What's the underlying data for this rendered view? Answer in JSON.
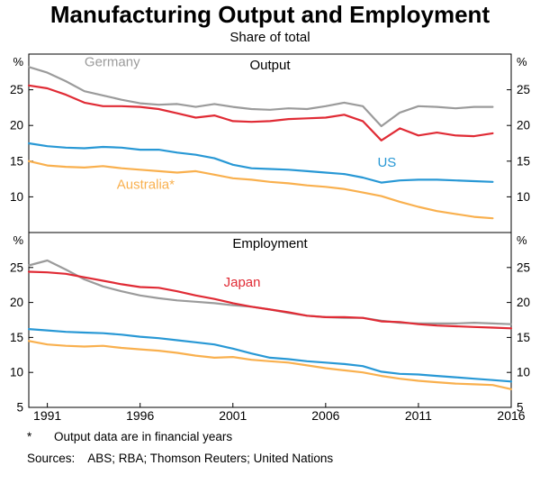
{
  "page": {
    "title": "Manufacturing Output and Employment",
    "subtitle": "Share of total",
    "footnote_marker": "*",
    "footnote_text": "Output data are in financial years",
    "sources_label": "Sources:",
    "sources_text": "ABS; RBA; Thomson Reuters; United Nations"
  },
  "chart_data": {
    "type": "line",
    "title": "Manufacturing Output and Employment",
    "subtitle": "Share of total",
    "legend_position": "none",
    "grid": false,
    "x_axis": {
      "range": [
        1990,
        2016
      ],
      "tick_labels": [
        1991,
        1996,
        2001,
        2006,
        2011,
        2016
      ]
    },
    "panels": [
      {
        "title": "Output",
        "unit": "%",
        "ylim": [
          5,
          30
        ],
        "yticks": [
          10,
          15,
          20,
          25
        ],
        "x": [
          1990,
          1991,
          1992,
          1993,
          1994,
          1995,
          1996,
          1997,
          1998,
          1999,
          2000,
          2001,
          2002,
          2003,
          2004,
          2005,
          2006,
          2007,
          2008,
          2009,
          2010,
          2011,
          2012,
          2013,
          2014,
          2015
        ],
        "series": [
          {
            "name": "Germany",
            "color": "#9b9b9b",
            "values": [
              28.2,
              27.4,
              26.2,
              24.8,
              24.2,
              23.6,
              23.1,
              22.9,
              23.0,
              22.6,
              23.0,
              22.6,
              22.3,
              22.2,
              22.4,
              22.3,
              22.7,
              23.2,
              22.7,
              19.9,
              21.8,
              22.7,
              22.6,
              22.4,
              22.6,
              22.6
            ],
            "label": {
              "text": "Germany",
              "x": 1994.5,
              "y": 28.3
            }
          },
          {
            "name": "Japan",
            "color": "#e02b35",
            "values": [
              25.6,
              25.2,
              24.3,
              23.2,
              22.7,
              22.7,
              22.6,
              22.3,
              21.7,
              21.1,
              21.4,
              20.6,
              20.5,
              20.6,
              20.9,
              21.0,
              21.1,
              21.5,
              20.6,
              17.9,
              19.6,
              18.6,
              19.0,
              18.6,
              18.5,
              18.9
            ]
          },
          {
            "name": "US",
            "color": "#2898d5",
            "values": [
              17.5,
              17.1,
              16.9,
              16.8,
              17.0,
              16.9,
              16.6,
              16.6,
              16.2,
              15.9,
              15.4,
              14.5,
              14.0,
              13.9,
              13.8,
              13.6,
              13.4,
              13.2,
              12.7,
              12.0,
              12.3,
              12.4,
              12.4,
              12.3,
              12.2,
              12.1
            ],
            "label": {
              "text": "US",
              "x": 2009.3,
              "y": 14.2
            }
          },
          {
            "name": "Australia",
            "color": "#f9b04e",
            "values": [
              15.0,
              14.4,
              14.2,
              14.1,
              14.3,
              14.0,
              13.8,
              13.6,
              13.4,
              13.6,
              13.1,
              12.6,
              12.4,
              12.1,
              11.9,
              11.6,
              11.4,
              11.1,
              10.6,
              10.1,
              9.3,
              8.6,
              8.0,
              7.6,
              7.2,
              7.0
            ],
            "label": {
              "text": "Australia*",
              "x": 1996.3,
              "y": 11.1
            }
          }
        ]
      },
      {
        "title": "Employment",
        "unit": "%",
        "ylim": [
          5,
          30
        ],
        "yticks": [
          5,
          10,
          15,
          20,
          25
        ],
        "x": [
          1990,
          1991,
          1992,
          1993,
          1994,
          1995,
          1996,
          1997,
          1998,
          1999,
          2000,
          2001,
          2002,
          2003,
          2004,
          2005,
          2006,
          2007,
          2008,
          2009,
          2010,
          2011,
          2012,
          2013,
          2014,
          2015,
          2016
        ],
        "series": [
          {
            "name": "Germany",
            "color": "#9b9b9b",
            "values": [
              25.3,
              26.0,
              24.7,
              23.3,
              22.3,
              21.6,
              21.0,
              20.6,
              20.3,
              20.1,
              19.9,
              19.6,
              19.4,
              19.0,
              18.5,
              18.1,
              17.9,
              17.8,
              17.8,
              17.4,
              17.1,
              17.0,
              17.0,
              17.0,
              17.1,
              17.0,
              16.9
            ]
          },
          {
            "name": "Japan",
            "color": "#e02b35",
            "values": [
              24.4,
              24.3,
              24.1,
              23.6,
              23.1,
              22.6,
              22.2,
              22.1,
              21.6,
              21.0,
              20.5,
              19.9,
              19.4,
              19.0,
              18.6,
              18.1,
              17.9,
              17.9,
              17.8,
              17.3,
              17.2,
              16.9,
              16.7,
              16.6,
              16.5,
              16.4,
              16.3
            ],
            "label": {
              "text": "Japan",
              "x": 2001.5,
              "y": 22.3
            }
          },
          {
            "name": "US",
            "color": "#2898d5",
            "values": [
              16.2,
              16.0,
              15.8,
              15.7,
              15.6,
              15.4,
              15.1,
              14.9,
              14.6,
              14.3,
              14.0,
              13.4,
              12.7,
              12.1,
              11.9,
              11.6,
              11.4,
              11.2,
              10.9,
              10.1,
              9.8,
              9.7,
              9.5,
              9.3,
              9.1,
              8.9,
              8.7
            ]
          },
          {
            "name": "Australia",
            "color": "#f9b04e",
            "values": [
              14.5,
              14.0,
              13.8,
              13.7,
              13.8,
              13.5,
              13.3,
              13.1,
              12.8,
              12.4,
              12.1,
              12.2,
              11.8,
              11.6,
              11.4,
              11.0,
              10.6,
              10.3,
              10.0,
              9.5,
              9.1,
              8.8,
              8.6,
              8.4,
              8.3,
              8.2,
              7.6
            ]
          }
        ]
      }
    ]
  }
}
